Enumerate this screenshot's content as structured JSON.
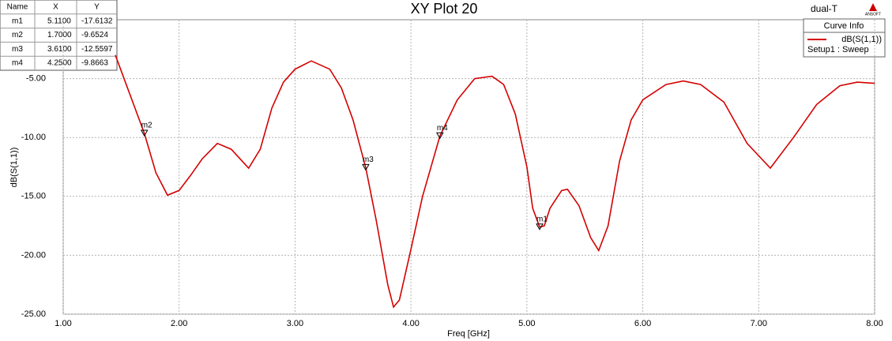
{
  "chart_data": {
    "type": "line",
    "title": "XY Plot 20",
    "project": "dual-T",
    "vendor": "ANSOFT",
    "legend_title": "Curve Info",
    "legend_subtitle": "Setup1 : Sweep",
    "xlabel": "Freq [GHz]",
    "ylabel": "dB(S(1,1))",
    "xlim": [
      1,
      8
    ],
    "ylim": [
      -25,
      0
    ],
    "xticks": [
      {
        "value": 1,
        "label": "1.00"
      },
      {
        "value": 2,
        "label": "2.00"
      },
      {
        "value": 3,
        "label": "3.00"
      },
      {
        "value": 4,
        "label": "4.00"
      },
      {
        "value": 5,
        "label": "5.00"
      },
      {
        "value": 6,
        "label": "6.00"
      },
      {
        "value": 7,
        "label": "7.00"
      },
      {
        "value": 8,
        "label": "8.00"
      }
    ],
    "yticks": [
      {
        "value": -25,
        "label": "-25.00"
      },
      {
        "value": -20,
        "label": "-20.00"
      },
      {
        "value": -15,
        "label": "-15.00"
      },
      {
        "value": -10,
        "label": "-10.00"
      },
      {
        "value": -5,
        "label": "-5.00"
      }
    ],
    "grid": true,
    "x": [
      1.45,
      1.7,
      1.8,
      1.9,
      2.0,
      2.1,
      2.2,
      2.33,
      2.45,
      2.6,
      2.7,
      2.8,
      2.9,
      3.0,
      3.14,
      3.3,
      3.4,
      3.5,
      3.61,
      3.7,
      3.8,
      3.85,
      3.9,
      4.0,
      4.1,
      4.25,
      4.4,
      4.55,
      4.7,
      4.8,
      4.9,
      5.0,
      5.05,
      5.11,
      5.15,
      5.2,
      5.3,
      5.35,
      5.45,
      5.55,
      5.62,
      5.7,
      5.8,
      5.9,
      6.0,
      6.2,
      6.35,
      6.5,
      6.7,
      6.9,
      7.1,
      7.3,
      7.5,
      7.7,
      7.85,
      8.0
    ],
    "series": [
      {
        "name": "dB(S(1,1))",
        "color": "#d40000",
        "values": [
          -3.0,
          -9.65,
          -13,
          -14.9,
          -14.5,
          -13.2,
          -11.8,
          -10.5,
          -11,
          -12.6,
          -11,
          -7.5,
          -5.3,
          -4.2,
          -3.5,
          -4.2,
          -5.8,
          -8.5,
          -12.56,
          -17,
          -22.5,
          -24.4,
          -23.8,
          -19.5,
          -15,
          -9.87,
          -6.8,
          -5.0,
          -4.8,
          -5.5,
          -8,
          -12.5,
          -16,
          -17.61,
          -17.5,
          -16,
          -14.5,
          -14.4,
          -15.8,
          -18.5,
          -19.6,
          -17.5,
          -12,
          -8.5,
          -6.8,
          -5.5,
          -5.2,
          -5.5,
          -7,
          -10.5,
          -12.6,
          -10,
          -7.2,
          -5.6,
          -5.3,
          -5.4
        ]
      }
    ],
    "table_header": [
      "Name",
      "X",
      "Y"
    ],
    "markers": [
      {
        "name": "m1",
        "x": 5.11,
        "y": -17.6132,
        "x_label": "5.1100",
        "y_label": "-17.6132"
      },
      {
        "name": "m2",
        "x": 1.7,
        "y": -9.6524,
        "x_label": "1.7000",
        "y_label": "-9.6524"
      },
      {
        "name": "m3",
        "x": 3.61,
        "y": -12.5597,
        "x_label": "3.6100",
        "y_label": "-12.5597"
      },
      {
        "name": "m4",
        "x": 4.25,
        "y": -9.8663,
        "x_label": "4.2500",
        "y_label": "-9.8663"
      }
    ]
  }
}
